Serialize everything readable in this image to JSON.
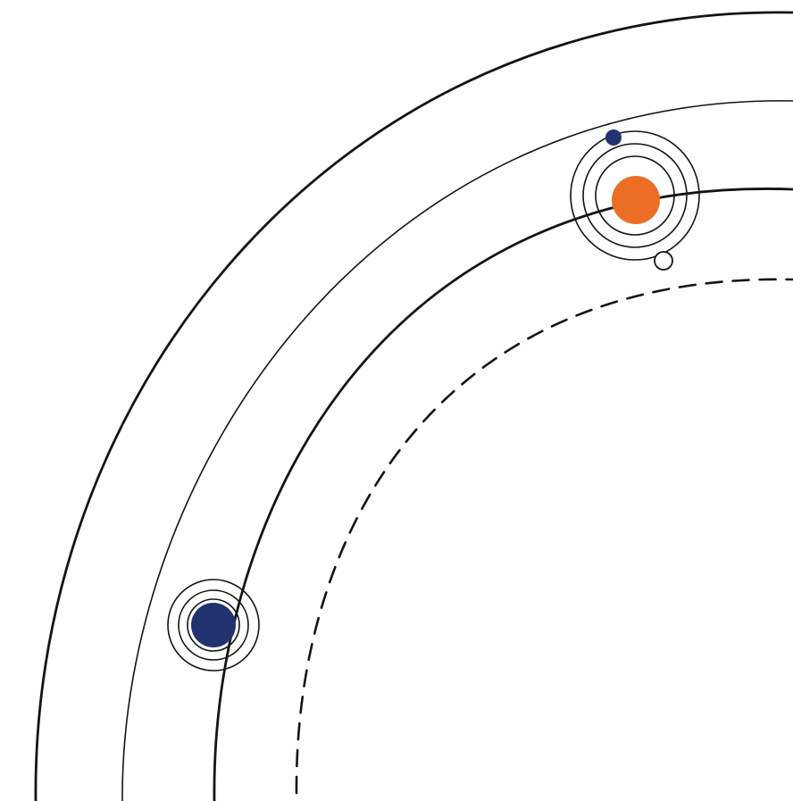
{
  "diagram": {
    "background": "#ffffff",
    "colors": {
      "line": "#141414",
      "orange_body": "#ec6e25",
      "navy_body": "#22326f",
      "hollow_body": "#ffffff"
    },
    "elements": [
      "outer-orbit",
      "second-orbit",
      "main-orbit",
      "inner-dashed-orbit",
      "orange-planet-system",
      "navy-planet-system"
    ]
  }
}
